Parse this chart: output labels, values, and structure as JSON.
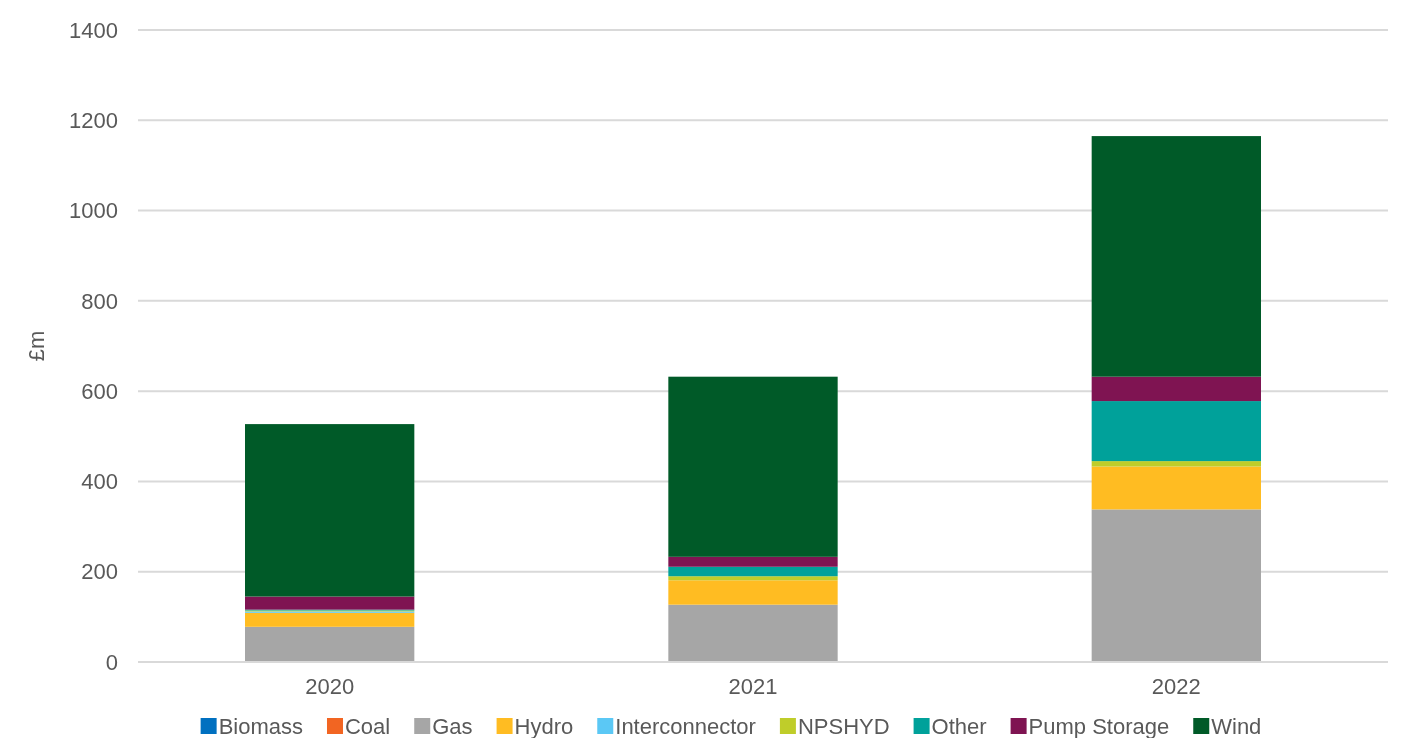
{
  "chart_data": {
    "type": "bar",
    "stacked": true,
    "ylabel": "£m",
    "categories": [
      "2020",
      "2021",
      "2022"
    ],
    "series": [
      {
        "name": "Biomass",
        "color": "#0070c0",
        "values": [
          0,
          0,
          0
        ]
      },
      {
        "name": "Coal",
        "color": "#f26522",
        "values": [
          0,
          0,
          0
        ]
      },
      {
        "name": "Gas",
        "color": "#a6a6a6",
        "values": [
          78,
          127,
          338
        ]
      },
      {
        "name": "Hydro",
        "color": "#ffbc22",
        "values": [
          31,
          54,
          95
        ]
      },
      {
        "name": "Interconnector",
        "color": "#5bc8f5",
        "values": [
          3,
          0,
          0
        ]
      },
      {
        "name": "NPSHYD",
        "color": "#bfcd2a",
        "values": [
          2,
          9,
          12
        ]
      },
      {
        "name": "Other",
        "color": "#00a19a",
        "values": [
          2,
          21,
          133
        ]
      },
      {
        "name": "Pump Storage",
        "color": "#7f1452",
        "values": [
          29,
          22,
          54
        ]
      },
      {
        "name": "Wind",
        "color": "#005a28",
        "values": [
          382,
          399,
          533
        ]
      }
    ],
    "ylim": [
      0,
      1400
    ],
    "yticks": [
      0,
      200,
      400,
      600,
      800,
      1000,
      1200,
      1400
    ],
    "grid": "y",
    "legend": "bottom"
  }
}
